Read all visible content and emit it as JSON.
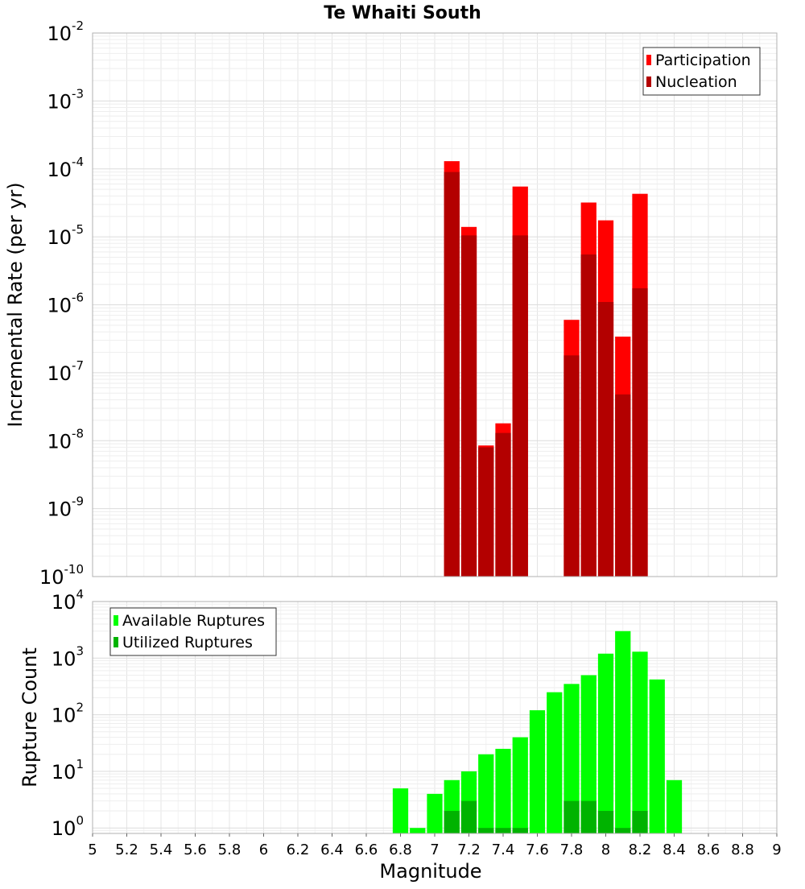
{
  "chart_data": [
    {
      "type": "bar",
      "title": "Te Whaiti South",
      "xlabel": "",
      "ylabel": "Incremental Rate (per yr)",
      "x_tick_values": [
        5,
        5.2,
        5.4,
        5.6,
        5.8,
        6,
        6.2,
        6.4,
        6.6,
        6.8,
        7,
        7.2,
        7.4,
        7.6,
        7.8,
        8,
        8.2,
        8.4,
        8.6,
        8.8,
        9
      ],
      "xlim": [
        5,
        9
      ],
      "ylim": [
        1e-10,
        0.01
      ],
      "y_scale": "log",
      "y_ticks": [
        {
          "base": "10",
          "exp": "-10",
          "value": 1e-10
        },
        {
          "base": "10",
          "exp": "-9",
          "value": 1e-09
        },
        {
          "base": "10",
          "exp": "-8",
          "value": 1e-08
        },
        {
          "base": "10",
          "exp": "-7",
          "value": 1e-07
        },
        {
          "base": "10",
          "exp": "-6",
          "value": 1e-06
        },
        {
          "base": "10",
          "exp": "-5",
          "value": 1e-05
        },
        {
          "base": "10",
          "exp": "-4",
          "value": 0.0001
        },
        {
          "base": "10",
          "exp": "-3",
          "value": 0.001
        },
        {
          "base": "10",
          "exp": "-2",
          "value": 0.01
        }
      ],
      "grid": true,
      "legend_position": "top-right",
      "series": [
        {
          "name": "Participation",
          "color": "#ff0000",
          "x": [
            7.1,
            7.2,
            7.3,
            7.4,
            7.5,
            7.8,
            7.9,
            8.0,
            8.1,
            8.2
          ],
          "values": [
            0.00013,
            1.4e-05,
            8.5e-09,
            1.8e-08,
            5.5e-05,
            6e-07,
            3.2e-05,
            1.75e-05,
            3.4e-07,
            4.3e-05
          ]
        },
        {
          "name": "Nucleation",
          "color": "#b30000",
          "x": [
            7.1,
            7.2,
            7.3,
            7.4,
            7.5,
            7.8,
            7.9,
            8.0,
            8.1,
            8.2
          ],
          "values": [
            9e-05,
            1.05e-05,
            8e-09,
            1.3e-08,
            1.05e-05,
            1.8e-07,
            5.5e-06,
            1.1e-06,
            4.8e-08,
            1.75e-06
          ]
        }
      ]
    },
    {
      "type": "bar",
      "title": "",
      "xlabel": "Magnitude",
      "ylabel": "Rupture Count",
      "x_tick_labels": [
        "5",
        "5.2",
        "5.4",
        "5.6",
        "5.8",
        "6",
        "6.2",
        "6.4",
        "6.6",
        "6.8",
        "7",
        "7.2",
        "7.4",
        "7.6",
        "7.8",
        "8",
        "8.2",
        "8.4",
        "8.6",
        "8.8",
        "9"
      ],
      "x_tick_values": [
        5,
        5.2,
        5.4,
        5.6,
        5.8,
        6,
        6.2,
        6.4,
        6.6,
        6.8,
        7,
        7.2,
        7.4,
        7.6,
        7.8,
        8,
        8.2,
        8.4,
        8.6,
        8.8,
        9
      ],
      "xlim": [
        5,
        9
      ],
      "ylim": [
        0.8,
        10000
      ],
      "y_scale": "log",
      "y_ticks": [
        {
          "base": "10",
          "exp": "0",
          "value": 1
        },
        {
          "base": "10",
          "exp": "1",
          "value": 10
        },
        {
          "base": "10",
          "exp": "2",
          "value": 100
        },
        {
          "base": "10",
          "exp": "3",
          "value": 1000
        },
        {
          "base": "10",
          "exp": "4",
          "value": 10000
        }
      ],
      "grid": true,
      "legend_position": "top-left",
      "series": [
        {
          "name": "Available Ruptures",
          "color": "#00ff00",
          "x": [
            6.8,
            6.9,
            7.0,
            7.1,
            7.2,
            7.3,
            7.4,
            7.5,
            7.6,
            7.7,
            7.8,
            7.9,
            8.0,
            8.1,
            8.2,
            8.3,
            8.4
          ],
          "values": [
            5,
            1,
            4,
            7,
            10,
            20,
            25,
            40,
            120,
            250,
            350,
            500,
            1200,
            3000,
            1300,
            420,
            7
          ]
        },
        {
          "name": "Utilized Ruptures",
          "color": "#00b300",
          "x": [
            7.1,
            7.2,
            7.3,
            7.4,
            7.5,
            7.8,
            7.9,
            8.0,
            8.1,
            8.2
          ],
          "values": [
            2,
            3,
            1,
            1,
            1,
            3,
            3,
            2,
            1,
            2
          ]
        }
      ]
    }
  ]
}
